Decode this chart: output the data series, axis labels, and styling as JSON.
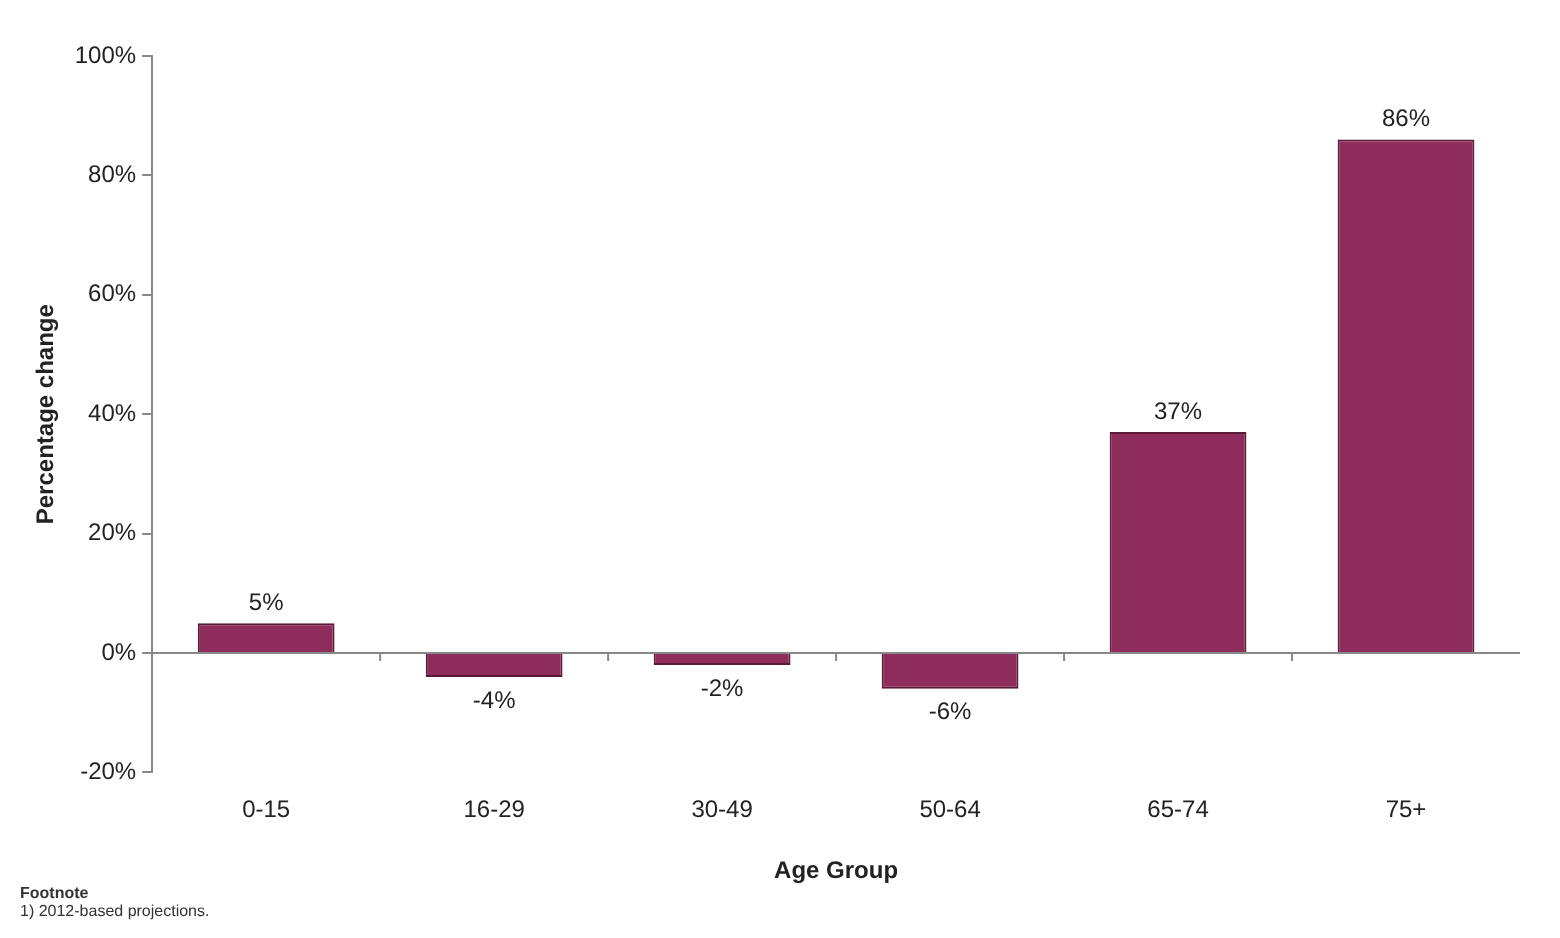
{
  "chart_data": {
    "type": "bar",
    "xlabel": "Age Group",
    "ylabel": "Percentage change",
    "categories": [
      "0-15",
      "16-29",
      "30-49",
      "50-64",
      "65-74",
      "75+"
    ],
    "values": [
      5,
      -4,
      -2,
      -6,
      37,
      86
    ],
    "value_labels": [
      "5%",
      "-4%",
      "-2%",
      "-6%",
      "37%",
      "86%"
    ],
    "color": "#8e2d5c",
    "ylim": [
      -20,
      100
    ],
    "yticks": [
      {
        "value": -20,
        "label": "-20%"
      },
      {
        "value": 0,
        "label": "0%"
      },
      {
        "value": 20,
        "label": "20%"
      },
      {
        "value": 40,
        "label": "40%"
      },
      {
        "value": 60,
        "label": "60%"
      },
      {
        "value": 80,
        "label": "80%"
      },
      {
        "value": 100,
        "label": "100%"
      }
    ],
    "grid": false,
    "legend": false,
    "ref_lines": [
      {
        "axis": "y",
        "value": 0,
        "color": "#888888"
      }
    ],
    "annotations": [
      "Footnote",
      "1) 2012-based projections."
    ]
  }
}
